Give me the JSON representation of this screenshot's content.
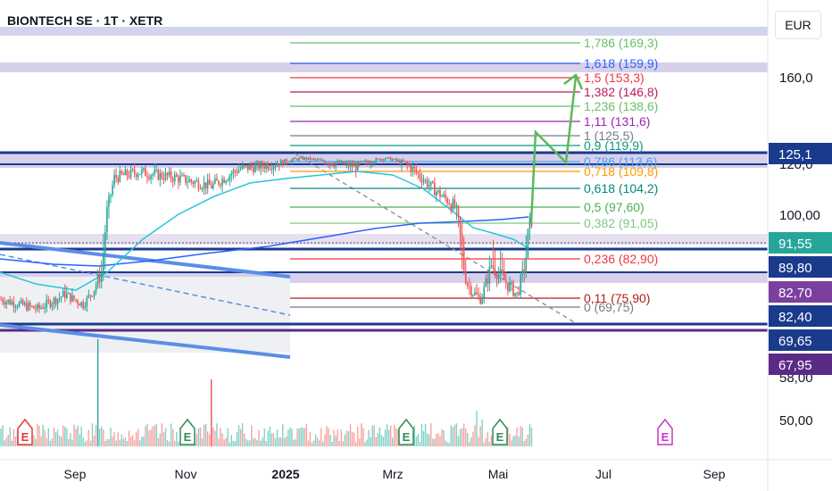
{
  "header": {
    "title": "BIONTECH SE · 1T · XETR",
    "currency": "EUR"
  },
  "chart_data": {
    "type": "candlestick",
    "x_ticks": [
      "Sep",
      "Nov",
      "2025",
      "Mrz",
      "Mai",
      "Jul",
      "Sep"
    ],
    "y_ticks": [
      "160,0",
      "120,0",
      "100,00",
      "58,00",
      "50,00"
    ],
    "price_tags": [
      {
        "label": "125,1",
        "bg": "#1a3a8c",
        "fg": "#ffffff"
      },
      {
        "label": "91,55",
        "bg": "#26a69a",
        "fg": "#ffffff"
      },
      {
        "label": "89,80",
        "bg": "#1a3a8c",
        "fg": "#ffffff"
      },
      {
        "label": "82,70",
        "bg": "#7b3fa0",
        "fg": "#ffffff"
      },
      {
        "label": "82,40",
        "bg": "#1a3a8c",
        "fg": "#ffffff"
      },
      {
        "label": "69,65",
        "bg": "#1a3a8c",
        "fg": "#ffffff"
      },
      {
        "label": "67,95",
        "bg": "#5b2a86",
        "fg": "#ffffff"
      }
    ],
    "fib_levels": [
      {
        "label": "1,786 (169,3)",
        "color": "#6abf69"
      },
      {
        "label": "1,618 (159,9)",
        "color": "#2962ff"
      },
      {
        "label": "1,5 (153,3)",
        "color": "#f23645"
      },
      {
        "label": "1,382 (146,8)",
        "color": "#c2185b"
      },
      {
        "label": "1,236 (138,6)",
        "color": "#6abf69"
      },
      {
        "label": "1,11 (131,6)",
        "color": "#9c27b0"
      },
      {
        "label": "1 (125,5)",
        "color": "#787b86"
      },
      {
        "label": "0,9 (119,9)",
        "color": "#089981"
      },
      {
        "label": "0,786 (113,6)",
        "color": "#42a5f5"
      },
      {
        "label": "0,718 (109,8)",
        "color": "#ff9800"
      },
      {
        "label": "0,618 (104,2)",
        "color": "#00897b"
      },
      {
        "label": "0,5 (97,60)",
        "color": "#4caf50"
      },
      {
        "label": "0,382 (91,05)",
        "color": "#81c784"
      },
      {
        "label": "0,236 (82,90)",
        "color": "#f23645"
      },
      {
        "label": "0,11 (75,90)",
        "color": "#b71c1c"
      },
      {
        "label": "0 (69,75)",
        "color": "#787b86"
      }
    ],
    "events": [
      "E",
      "E",
      "E",
      "E",
      "E"
    ],
    "colors": {
      "up": "#26a69a",
      "down": "#ef5350",
      "ma_slow": "#2962ff",
      "ma_fast": "#26c6da",
      "channel": "#5b8ee6"
    }
  }
}
